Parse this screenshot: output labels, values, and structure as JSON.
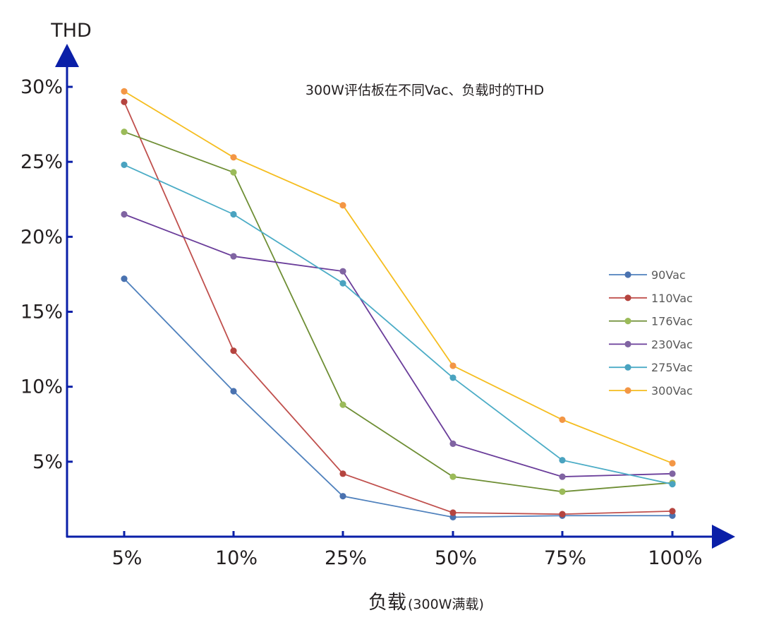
{
  "chart_data": {
    "type": "line",
    "title": "300W评估板在不同Vac、负载时的THD",
    "ylabel": "THD",
    "xlabel": "负载",
    "xlabel_note": "(300W满载)",
    "categories": [
      "5%",
      "10%",
      "25%",
      "50%",
      "75%",
      "100%"
    ],
    "ylim": [
      0,
      30
    ],
    "yticks": [
      5,
      10,
      15,
      20,
      25,
      30
    ],
    "ytick_labels": [
      "5%",
      "10%",
      "15%",
      "20%",
      "25%",
      "30%"
    ],
    "grid": false,
    "legend_placement": "right",
    "axis_color": "#0a1fa8",
    "series": [
      {
        "name": "90Vac",
        "line_color": "#4f81bd",
        "marker_color": "#4a72b0",
        "values": [
          17.2,
          9.7,
          2.7,
          1.3,
          1.4,
          1.4
        ]
      },
      {
        "name": "110Vac",
        "line_color": "#c0504d",
        "marker_color": "#b5443f",
        "values": [
          29.0,
          12.4,
          4.2,
          1.6,
          1.5,
          1.7
        ]
      },
      {
        "name": "176Vac",
        "line_color": "#6e8e34",
        "marker_color": "#9bbb59",
        "values": [
          27.0,
          24.3,
          8.8,
          4.0,
          3.0,
          3.6
        ]
      },
      {
        "name": "230Vac",
        "line_color": "#6a3d9a",
        "marker_color": "#8064a2",
        "values": [
          21.5,
          18.7,
          17.7,
          6.2,
          4.0,
          4.2
        ]
      },
      {
        "name": "275Vac",
        "line_color": "#4bacc6",
        "marker_color": "#4aa3c0",
        "values": [
          24.8,
          21.5,
          16.9,
          10.6,
          5.1,
          3.5
        ]
      },
      {
        "name": "300Vac",
        "line_color": "#f5bd1f",
        "marker_color": "#f39645",
        "values": [
          29.7,
          25.3,
          22.1,
          11.4,
          7.8,
          4.9
        ]
      }
    ]
  }
}
